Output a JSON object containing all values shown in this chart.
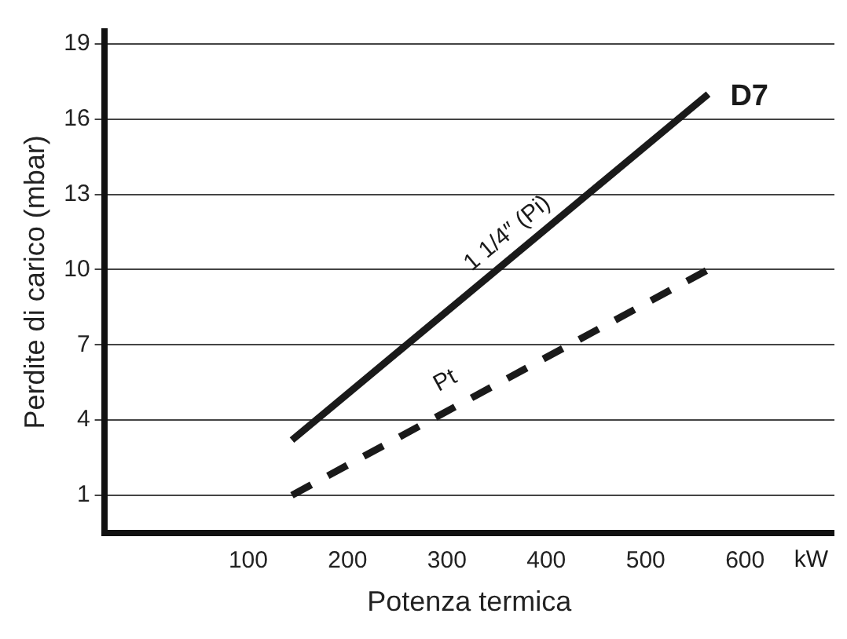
{
  "chart_data": {
    "type": "line",
    "xlabel": "Potenza termica",
    "ylabel": "Perdite di carico (mbar)",
    "xlim": [
      -45,
      690
    ],
    "ylim": [
      -0.5,
      19.5
    ],
    "xticks": [
      100,
      200,
      300,
      400,
      500,
      600
    ],
    "yticks": [
      1,
      4,
      7,
      10,
      13,
      16,
      19
    ],
    "x": [
      144,
      563
    ],
    "grid": "y",
    "legend": false,
    "marker": "none",
    "series": [
      {
        "name": "1 1/4″ (Pi)",
        "color": "#1a1a1a",
        "values": [
          3.2,
          17
        ],
        "line_style": "solid"
      },
      {
        "name": "Pt",
        "color": "#1a1a1a",
        "values": [
          1,
          10
        ],
        "line_style": "dashed"
      }
    ],
    "annotations": [
      {
        "text": "D7",
        "x": 563,
        "y": 17
      },
      "kW"
    ]
  }
}
